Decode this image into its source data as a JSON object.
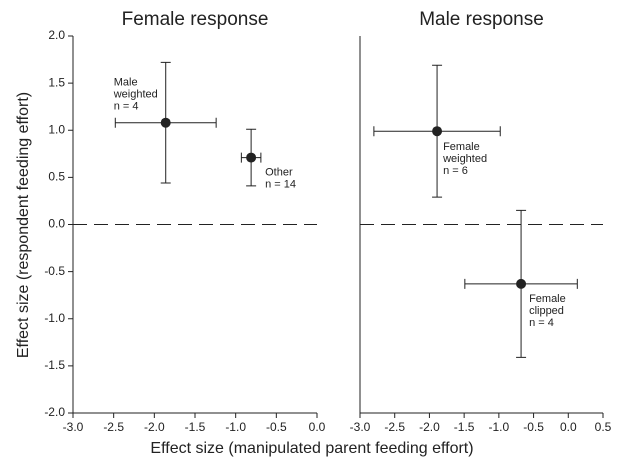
{
  "chart_data": [
    {
      "type": "scatter",
      "title": "Female response",
      "ylabel": "Effect size (respondent feeding effort)",
      "xlabel": "Effect size (manipulated parent feeding effort)",
      "xlim": [
        -3,
        0
      ],
      "ylim": [
        -2,
        2
      ],
      "xticks": [
        {
          "value": -3,
          "label": "-3.0"
        },
        -2.5,
        {
          "value": -2,
          "label": "-2.0"
        },
        -1.5,
        {
          "value": -1,
          "label": "-1.0"
        },
        -0.5,
        {
          "value": 0,
          "label": "0.0"
        }
      ],
      "yticks": [
        {
          "value": -2,
          "label": "-2.0"
        },
        -1.5,
        {
          "value": -1,
          "label": "-1.0"
        },
        -0.5,
        {
          "value": 0,
          "label": "0.0"
        },
        0.5,
        {
          "value": 1,
          "label": "1.0"
        },
        1.5,
        {
          "value": 2,
          "label": "2.0"
        }
      ],
      "hline": 0,
      "series": [
        {
          "color": "#222222",
          "x": [
            -1.86,
            -0.81
          ],
          "y": [
            1.08,
            0.71
          ],
          "xerr": [
            0.62,
            0.12
          ],
          "yerr": [
            0.64,
            0.3
          ],
          "annotations": [
            [
              "Male",
              "weighted",
              "n = 4"
            ],
            [
              "Other",
              "n = 14"
            ]
          ]
        }
      ]
    },
    {
      "type": "scatter",
      "title": "Male response",
      "xlim": [
        -3,
        0.5
      ],
      "ylim": [
        -2,
        2
      ],
      "xticks": [
        {
          "value": -3,
          "label": "-3.0"
        },
        -2.5,
        {
          "value": -2,
          "label": "-2.0"
        },
        -1.5,
        {
          "value": -1,
          "label": "-1.0"
        },
        -0.5,
        {
          "value": 0,
          "label": "0.0"
        },
        0.5
      ],
      "hline": 0,
      "series": [
        {
          "color": "#222222",
          "x": [
            -1.89,
            -0.68
          ],
          "y": [
            0.99,
            -0.63
          ],
          "xerr": [
            0.91,
            0.81
          ],
          "yerr": [
            0.7,
            0.78
          ],
          "annotations": [
            [
              "Female",
              "weighted",
              "n = 6"
            ],
            [
              "Female",
              "clipped",
              "n = 4"
            ]
          ]
        }
      ]
    }
  ]
}
